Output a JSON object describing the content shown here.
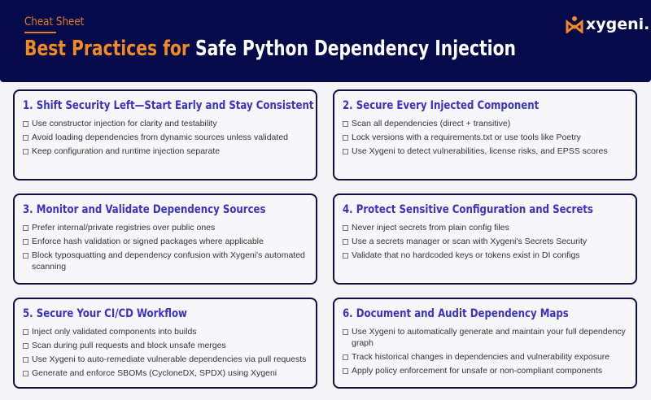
{
  "header": {
    "eyebrow": "Cheat Sheet",
    "title_highlight": "Best Practices for",
    "title_rest": "Safe Python Dependency Injection",
    "logo": "xygeni."
  },
  "colors": {
    "header_bg": "#050a4a",
    "accent": "#f08a24",
    "card_title": "#3b30c4"
  },
  "cards": [
    {
      "title": "1.  Shift Security Left—Start Early and Stay Consistent",
      "items": [
        "Use constructor injection for clarity and testability",
        "Avoid loading dependencies from dynamic sources unless validated",
        "Keep configuration and runtime injection separate"
      ]
    },
    {
      "title": "2. Secure Every Injected Component",
      "items": [
        "Scan all dependencies (direct + transitive)",
        "Lock versions with a requirements.txt or use tools like Poetry",
        "Use Xygeni to detect vulnerabilities, license risks, and EPSS scores"
      ]
    },
    {
      "title": "3. Monitor and Validate Dependency Sources",
      "items": [
        "Prefer internal/private registries over public ones",
        "Enforce hash validation or signed packages where applicable",
        "Block typosquatting and dependency confusion with Xygeni's automated scanning"
      ]
    },
    {
      "title": "4. Protect Sensitive Configuration and Secrets",
      "items": [
        "Never inject secrets from plain config files",
        "Use a secrets manager or scan with Xygeni's Secrets Security",
        "Validate that no hardcoded keys or tokens exist in DI configs"
      ]
    },
    {
      "title": "5. Secure Your CI/CD Workflow",
      "items": [
        "Inject only validated components into builds",
        "Scan during pull requests and block unsafe merges",
        "Use Xygeni to auto-remediate vulnerable dependencies via pull requests",
        "Generate and enforce SBOMs (CycloneDX, SPDX) using Xygeni"
      ]
    },
    {
      "title": "6. Document and Audit Dependency Maps",
      "items": [
        "Use Xygeni to automatically generate and maintain your full dependency graph",
        "Track historical changes in dependencies and vulnerability exposure",
        "Apply policy enforcement for unsafe or non-compliant components"
      ]
    }
  ]
}
